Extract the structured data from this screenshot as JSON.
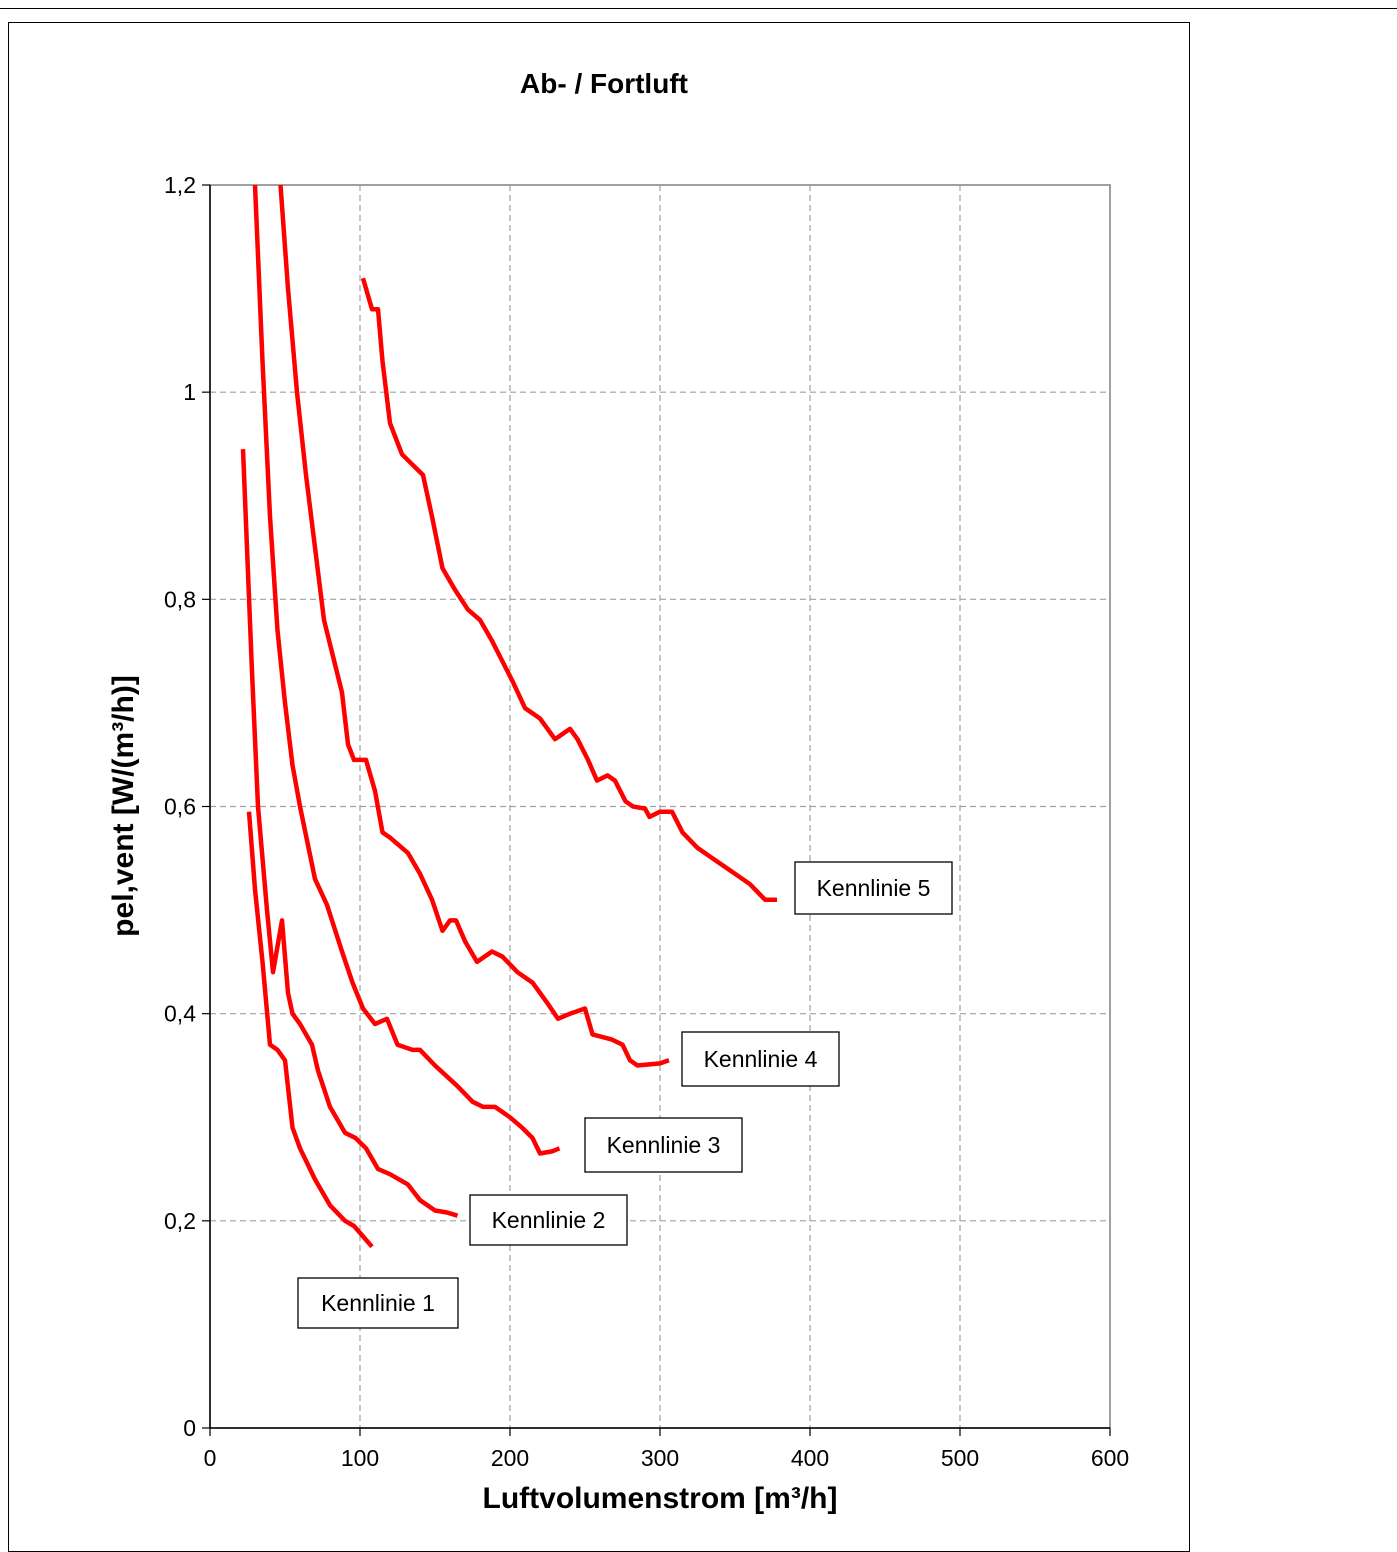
{
  "chart_data": {
    "type": "line",
    "title": "Ab- / Fortluft",
    "xlabel": "Luftvolumenstrom [m³/h]",
    "ylabel": "pel,vent [W/(m³/h)]",
    "xlim": [
      0,
      600
    ],
    "ylim": [
      0,
      1.2
    ],
    "xticks": [
      0,
      100,
      200,
      300,
      400,
      500,
      600
    ],
    "xtick_labels": [
      "0",
      "100",
      "200",
      "300",
      "400",
      "500",
      "600"
    ],
    "yticks": [
      0,
      0.2,
      0.4,
      0.6,
      0.8,
      1.0,
      1.2
    ],
    "ytick_labels": [
      "0",
      "0,2",
      "0,4",
      "0,6",
      "0,8",
      "1",
      "1,2"
    ],
    "grid": true,
    "line_color": "#ff0000",
    "series": [
      {
        "name": "Kennlinie 1",
        "x": [
          26,
          30,
          35,
          40,
          45,
          50,
          55,
          60,
          70,
          80,
          90,
          96,
          102,
          108
        ],
        "y": [
          0.595,
          0.52,
          0.45,
          0.37,
          0.365,
          0.355,
          0.29,
          0.27,
          0.24,
          0.215,
          0.2,
          0.195,
          0.185,
          0.175
        ]
      },
      {
        "name": "Kennlinie 2",
        "x": [
          22,
          28,
          32,
          38,
          42,
          48,
          52,
          55,
          60,
          68,
          72,
          80,
          90,
          97,
          104,
          112,
          120,
          132,
          140,
          150,
          158,
          165
        ],
        "y": [
          0.945,
          0.73,
          0.6,
          0.5,
          0.44,
          0.49,
          0.42,
          0.4,
          0.39,
          0.37,
          0.345,
          0.31,
          0.285,
          0.28,
          0.27,
          0.25,
          0.245,
          0.235,
          0.22,
          0.21,
          0.208,
          0.205
        ]
      },
      {
        "name": "Kennlinie 3",
        "x": [
          30,
          35,
          40,
          45,
          50,
          55,
          60,
          70,
          78,
          88,
          95,
          102,
          110,
          118,
          125,
          135,
          140,
          150,
          165,
          175,
          182,
          190,
          200,
          208,
          215,
          220,
          228,
          233
        ],
        "y": [
          1.2,
          1.03,
          0.88,
          0.77,
          0.7,
          0.64,
          0.6,
          0.53,
          0.505,
          0.46,
          0.43,
          0.405,
          0.39,
          0.395,
          0.37,
          0.365,
          0.365,
          0.35,
          0.33,
          0.315,
          0.31,
          0.31,
          0.3,
          0.29,
          0.28,
          0.265,
          0.267,
          0.27
        ]
      },
      {
        "name": "Kennlinie 4",
        "x": [
          47,
          52,
          58,
          64,
          70,
          76,
          82,
          88,
          92,
          96,
          104,
          110,
          115,
          120,
          132,
          140,
          148,
          155,
          160,
          164,
          170,
          178,
          188,
          195,
          205,
          215,
          225,
          232,
          240,
          250,
          255,
          268,
          275,
          280,
          285,
          300,
          306
        ],
        "y": [
          1.2,
          1.1,
          1.0,
          0.92,
          0.85,
          0.78,
          0.745,
          0.71,
          0.66,
          0.645,
          0.645,
          0.615,
          0.575,
          0.57,
          0.555,
          0.535,
          0.51,
          0.48,
          0.49,
          0.49,
          0.47,
          0.45,
          0.46,
          0.455,
          0.44,
          0.43,
          0.41,
          0.395,
          0.4,
          0.405,
          0.38,
          0.375,
          0.37,
          0.355,
          0.35,
          0.352,
          0.355
        ]
      },
      {
        "name": "Kennlinie 5",
        "x": [
          102,
          108,
          112,
          115,
          120,
          128,
          135,
          142,
          148,
          155,
          163,
          172,
          180,
          188,
          195,
          202,
          210,
          220,
          230,
          235,
          240,
          245,
          252,
          258,
          265,
          270,
          277,
          282,
          290,
          293,
          300,
          308,
          315,
          325,
          335,
          345,
          350,
          360,
          370,
          378
        ],
        "y": [
          1.11,
          1.08,
          1.08,
          1.03,
          0.97,
          0.94,
          0.93,
          0.92,
          0.88,
          0.83,
          0.81,
          0.79,
          0.78,
          0.76,
          0.74,
          0.72,
          0.695,
          0.685,
          0.665,
          0.67,
          0.675,
          0.665,
          0.645,
          0.625,
          0.63,
          0.625,
          0.605,
          0.6,
          0.598,
          0.59,
          0.595,
          0.595,
          0.575,
          0.56,
          0.55,
          0.54,
          0.535,
          0.525,
          0.51,
          0.51
        ]
      }
    ]
  }
}
